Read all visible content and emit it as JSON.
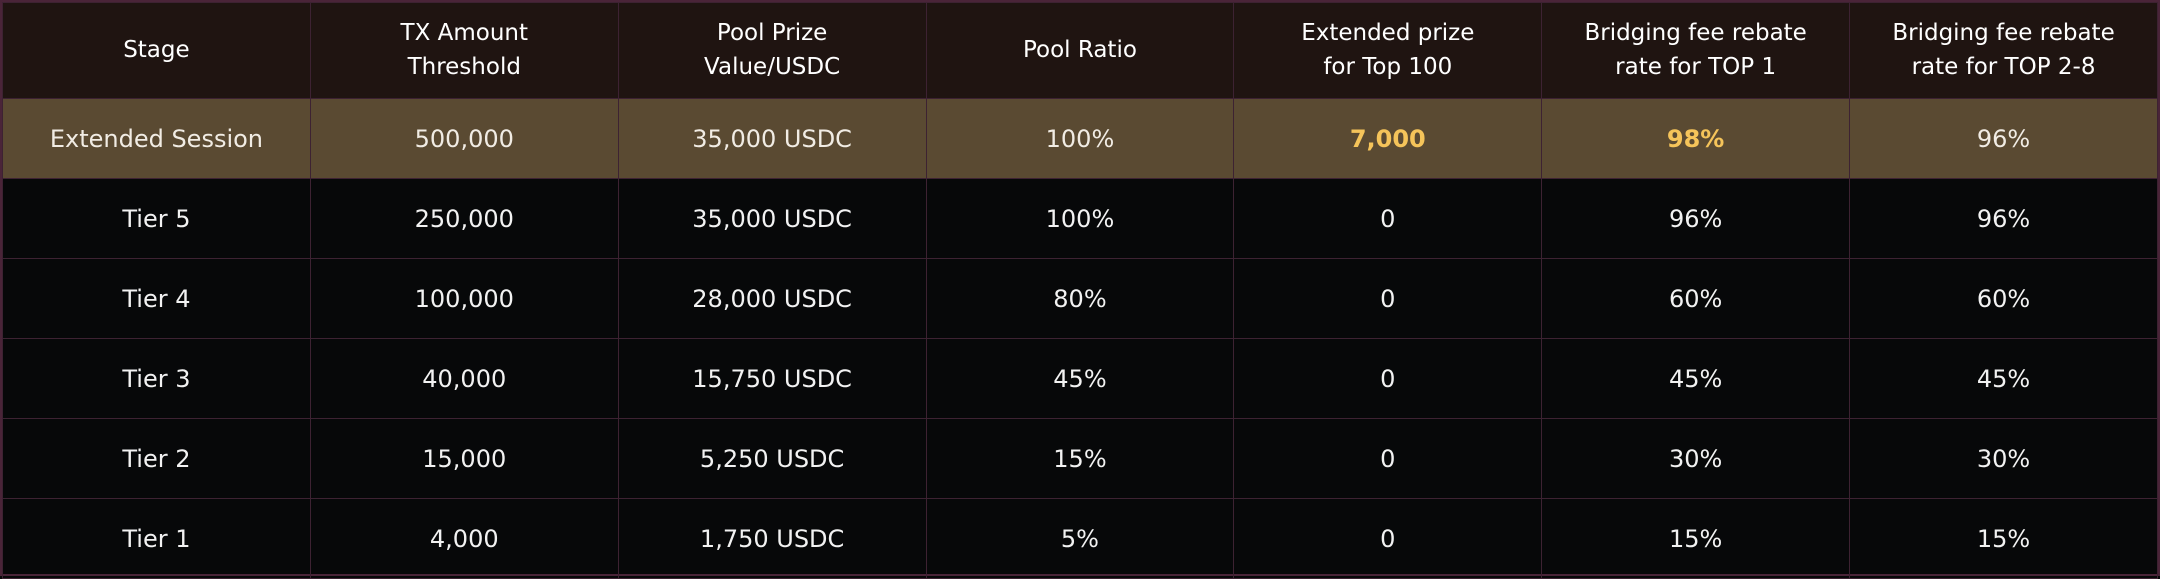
{
  "table": {
    "headers": [
      {
        "lines": [
          "Stage"
        ]
      },
      {
        "lines": [
          "TX Amount",
          "Threshold"
        ]
      },
      {
        "lines": [
          "Pool Prize",
          "Value/USDC"
        ]
      },
      {
        "lines": [
          "Pool Ratio"
        ]
      },
      {
        "lines": [
          "Extended prize",
          "for Top 100"
        ]
      },
      {
        "lines": [
          "Bridging fee rebate",
          "rate for TOP 1"
        ]
      },
      {
        "lines": [
          "Bridging fee rebate",
          "rate for TOP 2-8"
        ]
      }
    ],
    "rows": [
      [
        "Extended Session",
        "500,000",
        "35,000 USDC",
        "100%",
        "7,000",
        "98%",
        "96%"
      ],
      [
        "Tier 5",
        "250,000",
        "35,000 USDC",
        "100%",
        "0",
        "96%",
        "96%"
      ],
      [
        "Tier 4",
        "100,000",
        "28,000 USDC",
        "80%",
        "0",
        "60%",
        "60%"
      ],
      [
        "Tier 3",
        "40,000",
        "15,750 USDC",
        "45%",
        "0",
        "45%",
        "45%"
      ],
      [
        "Tier 2",
        "15,000",
        "5,250 USDC",
        "15%",
        "0",
        "30%",
        "30%"
      ],
      [
        "Tier 1",
        "4,000",
        "1,750 USDC",
        "5%",
        "0",
        "15%",
        "15%"
      ]
    ]
  },
  "colors": {
    "header_bg": "#1f1411",
    "highlight_row_bg": "#5a4a32",
    "accent_text": "#f5c45a",
    "body_bg": "#070809",
    "grid_line": "#3d2232"
  }
}
